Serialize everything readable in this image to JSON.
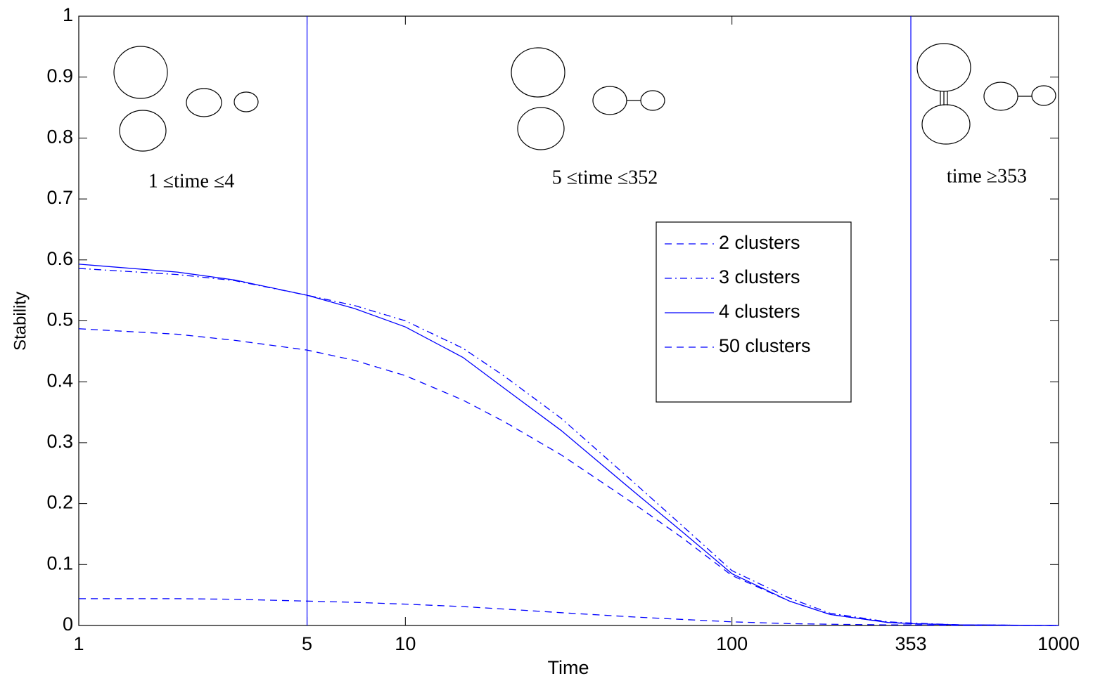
{
  "chart_data": {
    "type": "line",
    "xlabel": "Time",
    "ylabel": "Stability",
    "xscale": "log",
    "x": [
      1,
      2,
      3,
      5,
      7,
      10,
      15,
      20,
      30,
      50,
      70,
      100,
      150,
      200,
      300,
      353,
      500,
      1000
    ],
    "series": [
      {
        "name": "2 clusters",
        "color": "#0000ff",
        "dash": "dashed",
        "values": [
          0.487,
          0.478,
          0.468,
          0.452,
          0.435,
          0.41,
          0.37,
          0.335,
          0.28,
          0.2,
          0.145,
          0.082,
          0.04,
          0.018,
          0.005,
          0.003,
          0.001,
          0
        ]
      },
      {
        "name": "3 clusters",
        "color": "#0000ff",
        "dash": "dashdot",
        "values": [
          0.586,
          0.576,
          0.566,
          0.542,
          0.525,
          0.5,
          0.455,
          0.41,
          0.34,
          0.235,
          0.165,
          0.09,
          0.045,
          0.02,
          0.006,
          0.004,
          0.001,
          0
        ]
      },
      {
        "name": "4 clusters",
        "color": "#0000ff",
        "dash": "solid",
        "values": [
          0.593,
          0.58,
          0.567,
          0.542,
          0.52,
          0.49,
          0.44,
          0.39,
          0.32,
          0.22,
          0.155,
          0.085,
          0.04,
          0.018,
          0.005,
          0.003,
          0.001,
          0
        ]
      },
      {
        "name": "50 clusters",
        "color": "#0000ff",
        "dash": "dashed",
        "values": [
          0.044,
          0.044,
          0.043,
          0.04,
          0.038,
          0.035,
          0.031,
          0.027,
          0.021,
          0.014,
          0.01,
          0.006,
          0.003,
          0.002,
          0.001,
          0.001,
          0,
          0
        ]
      }
    ],
    "xlim": [
      1,
      1000
    ],
    "xticks": [
      1,
      5,
      10,
      100,
      353,
      1000
    ],
    "ylim": [
      0,
      1
    ],
    "yticks": [
      0,
      0.1,
      0.2,
      0.3,
      0.4,
      0.5,
      0.6,
      0.7,
      0.8,
      0.9,
      1
    ],
    "vlines": [
      5,
      353
    ],
    "annotations": [
      "1 ≤time ≤4",
      "5 ≤time ≤352",
      "time ≥353"
    ],
    "legend_loc": "center right"
  }
}
